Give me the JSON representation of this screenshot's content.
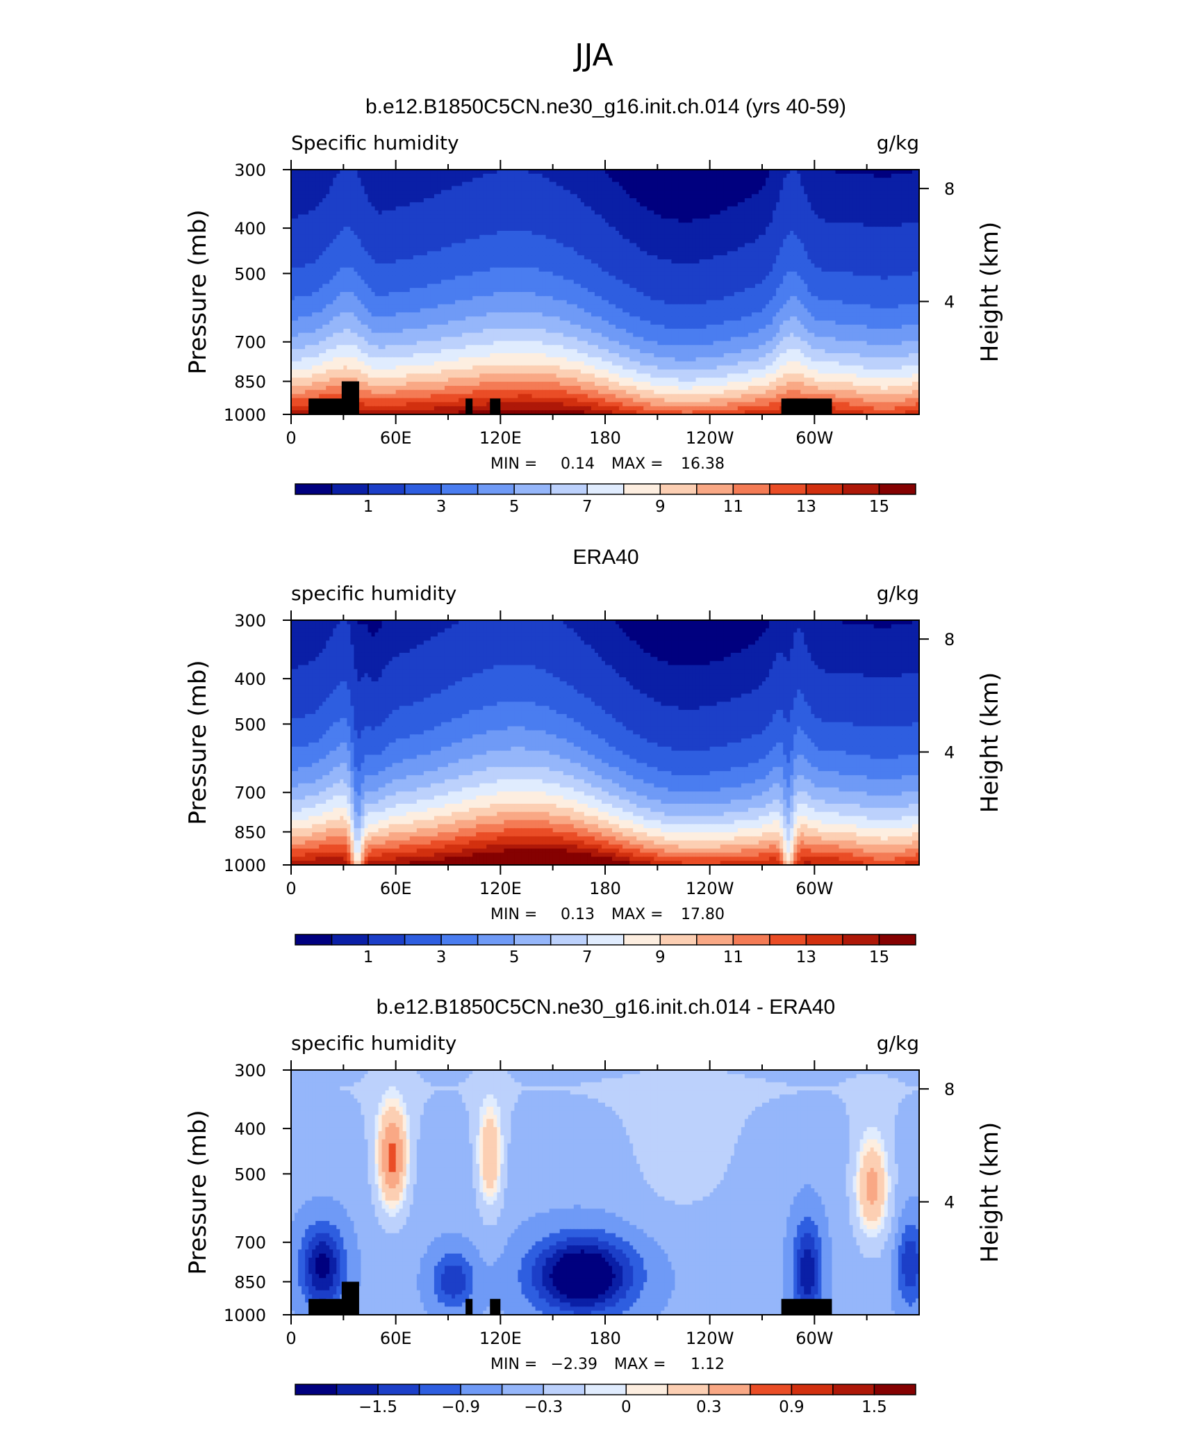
{
  "figure_title": "JJA",
  "chart_data": [
    {
      "type": "contour",
      "title": "b.e12.B1850C5CN.ne30_g16.init.ch.014 (yrs 40-59)",
      "left_label": "Specific humidity",
      "right_label": "g/kg",
      "ylabel": "Pressure (mb)",
      "ylabel2": "Height (km)",
      "xticks": [
        "0",
        "60E",
        "120E",
        "180",
        "120W",
        "60W"
      ],
      "xtick_lon": [
        0,
        60,
        120,
        180,
        240,
        300
      ],
      "xlim": [
        0,
        360
      ],
      "yticks": [
        300,
        400,
        500,
        700,
        850,
        1000
      ],
      "ylim": [
        1000,
        300
      ],
      "yscale": "log",
      "height_ticks": [
        "8",
        "4"
      ],
      "height_tick_km": [
        8,
        4
      ],
      "stats_min_label": "MIN =",
      "stats_min": "0.14",
      "stats_max_label": "MAX =",
      "stats_max": "16.38",
      "levels": [
        0.5,
        1,
        2,
        3,
        4,
        5,
        6,
        7,
        8,
        9,
        10,
        11,
        12,
        13,
        14,
        15
      ],
      "colorbar_labels": [
        "1",
        "3",
        "5",
        "7",
        "9",
        "11",
        "13",
        "15"
      ],
      "topography": true
    },
    {
      "type": "contour",
      "title": "ERA40",
      "left_label": "specific humidity",
      "right_label": "g/kg",
      "ylabel": "Pressure (mb)",
      "ylabel2": "Height (km)",
      "xticks": [
        "0",
        "60E",
        "120E",
        "180",
        "120W",
        "60W"
      ],
      "xtick_lon": [
        0,
        60,
        120,
        180,
        240,
        300
      ],
      "xlim": [
        0,
        360
      ],
      "yticks": [
        300,
        400,
        500,
        700,
        850,
        1000
      ],
      "ylim": [
        1000,
        300
      ],
      "yscale": "log",
      "height_ticks": [
        "8",
        "4"
      ],
      "height_tick_km": [
        8,
        4
      ],
      "stats_min_label": "MIN =",
      "stats_min": "0.13",
      "stats_max_label": "MAX =",
      "stats_max": "17.80",
      "levels": [
        0.5,
        1,
        2,
        3,
        4,
        5,
        6,
        7,
        8,
        9,
        10,
        11,
        12,
        13,
        14,
        15
      ],
      "colorbar_labels": [
        "1",
        "3",
        "5",
        "7",
        "9",
        "11",
        "13",
        "15"
      ],
      "topography": false
    },
    {
      "type": "contour",
      "title": "b.e12.B1850C5CN.ne30_g16.init.ch.014 - ERA40",
      "left_label": "specific humidity",
      "right_label": "g/kg",
      "ylabel": "Pressure (mb)",
      "ylabel2": "Height (km)",
      "xticks": [
        "0",
        "60E",
        "120E",
        "180",
        "120W",
        "60W"
      ],
      "xtick_lon": [
        0,
        60,
        120,
        180,
        240,
        300
      ],
      "xlim": [
        0,
        360
      ],
      "yticks": [
        300,
        400,
        500,
        700,
        850,
        1000
      ],
      "ylim": [
        1000,
        300
      ],
      "yscale": "log",
      "height_ticks": [
        "8",
        "4"
      ],
      "height_tick_km": [
        8,
        4
      ],
      "stats_min_label": "MIN =",
      "stats_min": "−2.39",
      "stats_max_label": "MAX =",
      "stats_max": "1.12",
      "levels": [
        -1.8,
        -1.5,
        -1.2,
        -0.9,
        -0.6,
        -0.3,
        0,
        0.15,
        0.3,
        0.6,
        0.9,
        1.2,
        1.5,
        1.8
      ],
      "colorbar_labels": [
        "−1.5",
        "−0.9",
        "−0.3",
        "0",
        "0.3",
        "0.9",
        "1.5"
      ],
      "topography": true
    }
  ],
  "palette": [
    "#00007f",
    "#0a1fa6",
    "#1c3fc8",
    "#2e5ee0",
    "#4a7df0",
    "#6f9af6",
    "#95b6fa",
    "#bcd1fc",
    "#e0ecfe",
    "#fdeee0",
    "#fccfb3",
    "#f9a885",
    "#f47b55",
    "#ea4d26",
    "#d2300f",
    "#ae1808",
    "#850101"
  ]
}
